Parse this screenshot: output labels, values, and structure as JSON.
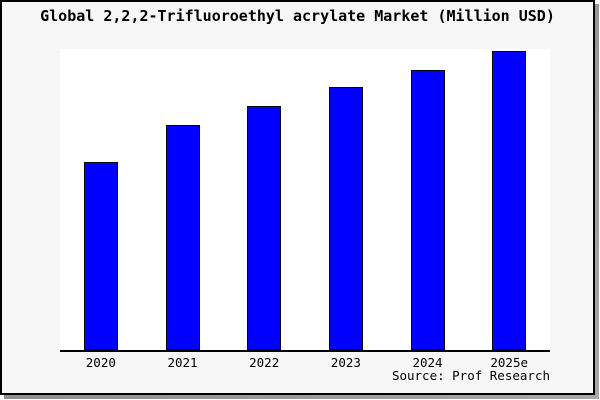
{
  "source_caption": "Source: Prof Research",
  "colors": {
    "bar_fill": "#0000ff",
    "bar_edge": "#000000",
    "figure_background": "#f7f7f7",
    "plot_background": "#ffffff",
    "axis_line": "#000000",
    "frame_shadow": "#8f8f8f"
  },
  "chart_data": {
    "type": "bar",
    "title": "Global 2,2,2-Trifluoroethyl acrylate Market (Million USD)",
    "categories": [
      "2020",
      "2021",
      "2022",
      "2023",
      "2024",
      "2025e"
    ],
    "values": [
      188,
      225,
      244,
      263,
      280,
      299
    ],
    "values_unit": "relative scale estimated from bar heights (chart displays no y-axis tick labels)",
    "xlabel": "",
    "ylabel": "",
    "ylim": [
      0,
      301
    ],
    "grid": false,
    "legend": null,
    "bar_color": "#0000ff",
    "bar_edge_color": "#000000",
    "annotations": [
      "Source: Prof Research"
    ]
  }
}
